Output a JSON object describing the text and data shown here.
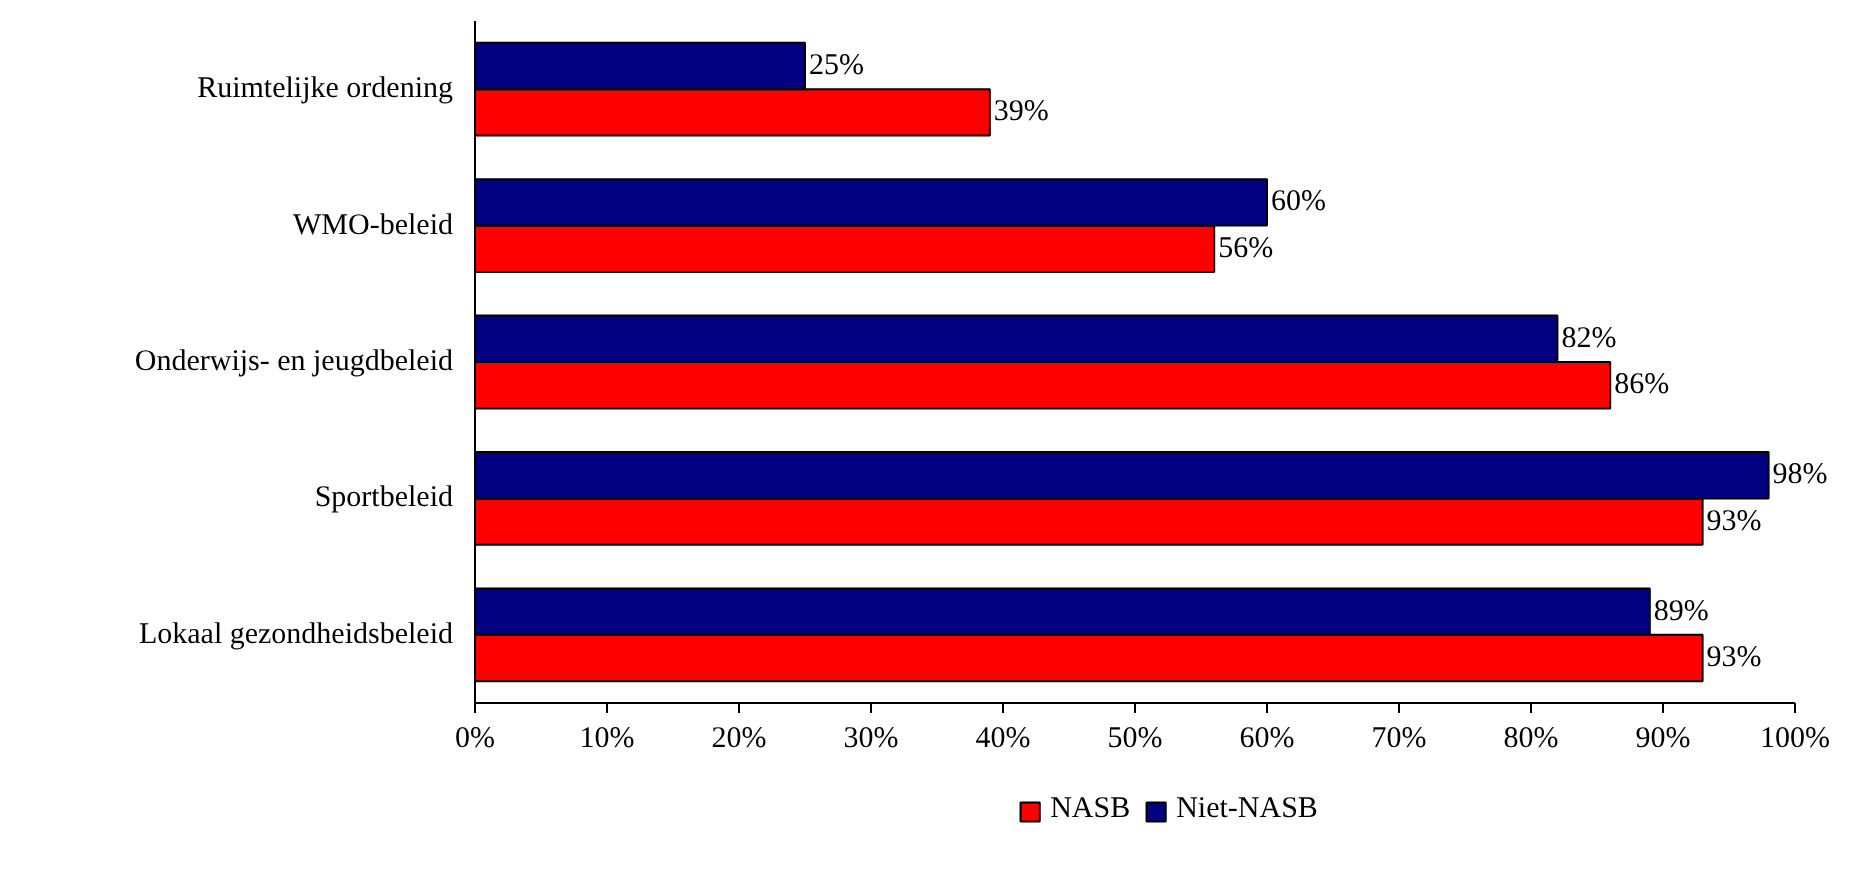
{
  "chart_data": {
    "type": "bar",
    "orientation": "horizontal",
    "categories": [
      "Ruimtelijke ordening",
      "WMO-beleid",
      "Onderwijs- en jeugdbeleid",
      "Sportbeleid",
      "Lokaal gezondheidsbeleid"
    ],
    "series": [
      {
        "name": "NASB",
        "color": "#ff0000",
        "values": [
          39,
          56,
          86,
          93,
          93
        ],
        "value_labels": [
          "39%",
          "56%",
          "86%",
          "93%",
          "93%"
        ]
      },
      {
        "name": "Niet-NASB",
        "color": "#000080",
        "values": [
          25,
          60,
          82,
          98,
          89
        ],
        "value_labels": [
          "25%",
          "60%",
          "82%",
          "98%",
          "89%"
        ]
      }
    ],
    "xlim": [
      0,
      100
    ],
    "xticks": [
      {
        "value": 0,
        "label": "0%"
      },
      {
        "value": 10,
        "label": "10%"
      },
      {
        "value": 20,
        "label": "20%"
      },
      {
        "value": 30,
        "label": "30%"
      },
      {
        "value": 40,
        "label": "40%"
      },
      {
        "value": 50,
        "label": "50%"
      },
      {
        "value": 60,
        "label": "60%"
      },
      {
        "value": 70,
        "label": "70%"
      },
      {
        "value": 80,
        "label": "80%"
      },
      {
        "value": 90,
        "label": "90%"
      },
      {
        "value": 100,
        "label": "100%"
      }
    ],
    "grid": false,
    "legend": "bottom"
  }
}
